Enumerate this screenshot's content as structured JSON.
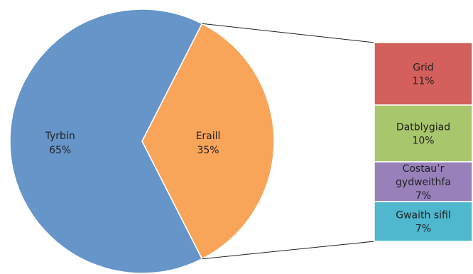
{
  "chart_data": {
    "type": "bar-of-pie",
    "pie": {
      "slices": [
        {
          "name": "Tyrbin",
          "value": 65,
          "label": "65%",
          "color": "#6595C9"
        },
        {
          "name": "Eraill",
          "value": 35,
          "label": "35%",
          "color": "#F8A55A"
        }
      ]
    },
    "bar": {
      "stack": [
        {
          "name": "Grid",
          "value": 11,
          "label": "11%",
          "color": "#D3605D"
        },
        {
          "name": "Datblygiad",
          "value": 10,
          "label": "10%",
          "color": "#A8C66C"
        },
        {
          "name_lines": [
            "Costau’r",
            "gydweithfa"
          ],
          "value": 7,
          "label": "7%",
          "color": "#9880BA"
        },
        {
          "name": "Gwaith sifil",
          "value": 7,
          "label": "7%",
          "color": "#4FB7CE"
        }
      ]
    },
    "connector_color": "#222222",
    "legend": "none",
    "grid": false
  }
}
